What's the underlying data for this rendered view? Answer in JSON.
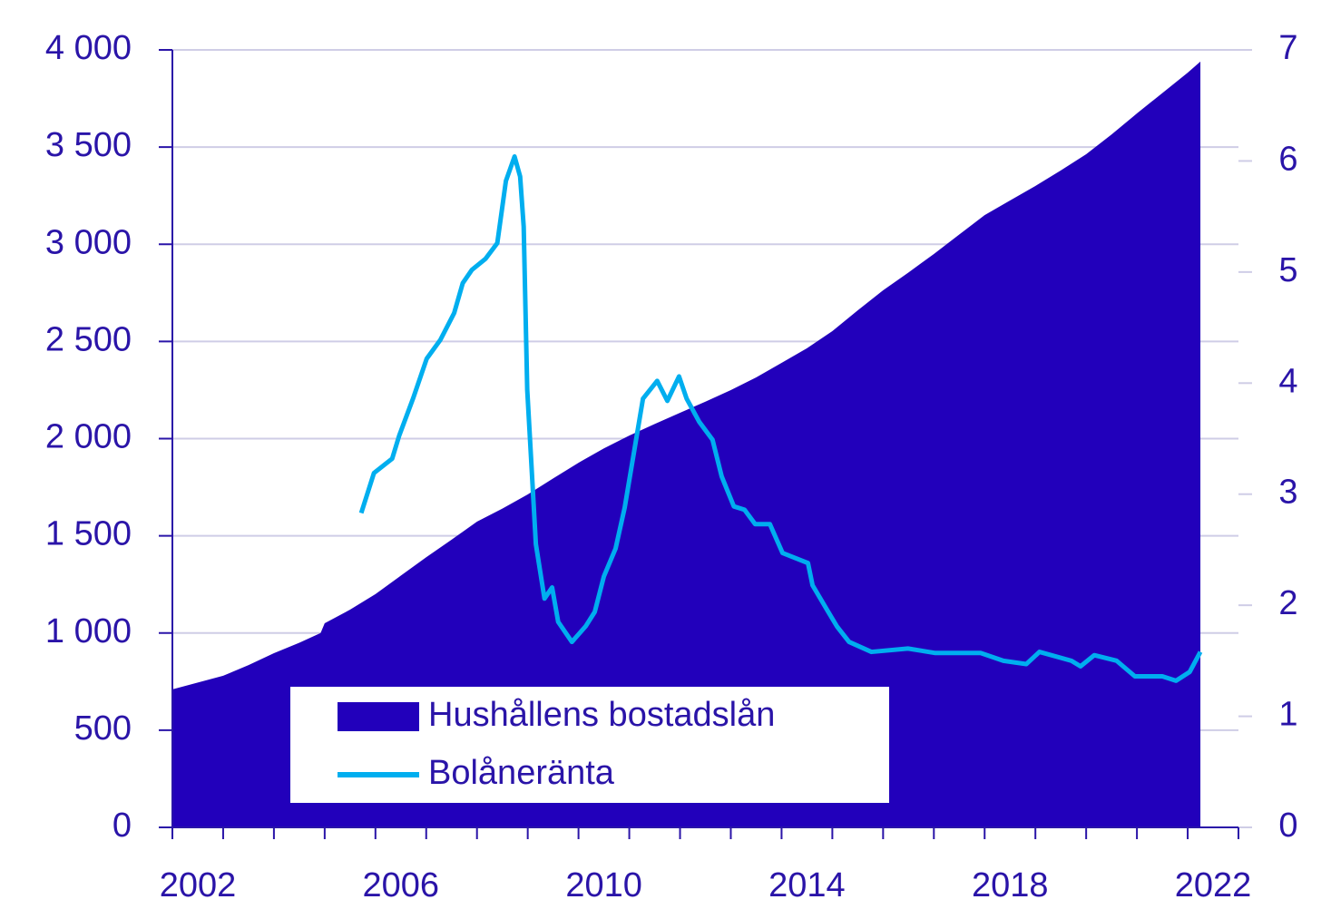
{
  "chart_data": {
    "type": "combo",
    "series": [
      {
        "name": "Hushållens bostadslån",
        "color": "#2200bb",
        "kind": "area",
        "axis": "y",
        "x": [
          2002,
          2002.5,
          2003,
          2003.5,
          2004,
          2004.5,
          2004.92,
          2005,
          2005.5,
          2006,
          2006.5,
          2007,
          2007.5,
          2008,
          2008.5,
          2009,
          2009.5,
          2010,
          2010.5,
          2011,
          2011.5,
          2012,
          2012.5,
          2013,
          2013.5,
          2014,
          2014.5,
          2015,
          2015.5,
          2016,
          2016.5,
          2017,
          2017.5,
          2018,
          2018.5,
          2019,
          2019.5,
          2020,
          2020.5,
          2021,
          2021.5,
          2022,
          2022.25
        ],
        "values": [
          710,
          745,
          780,
          835,
          896,
          950,
          1000,
          1050,
          1120,
          1200,
          1295,
          1390,
          1480,
          1573,
          1640,
          1713,
          1795,
          1876,
          1950,
          2016,
          2075,
          2133,
          2190,
          2250,
          2315,
          2390,
          2465,
          2553,
          2660,
          2763,
          2855,
          2950,
          3050,
          3150,
          3225,
          3300,
          3380,
          3463,
          3565,
          3673,
          3778,
          3883,
          3940
        ]
      },
      {
        "name": "Bolåneränta",
        "color": "#00aeef",
        "kind": "line",
        "axis": "y2",
        "x": [
          2005.72,
          2005.97,
          2006.33,
          2006.47,
          2006.74,
          2007.01,
          2007.28,
          2007.55,
          2007.72,
          2007.9,
          2008.17,
          2008.4,
          2008.57,
          2008.74,
          2008.85,
          2008.92,
          2008.99,
          2009.16,
          2009.33,
          2009.48,
          2009.6,
          2009.87,
          2010.14,
          2010.32,
          2010.5,
          2010.73,
          2010.91,
          2011.09,
          2011.27,
          2011.55,
          2011.75,
          2011.98,
          2012.13,
          2012.38,
          2012.64,
          2012.82,
          2013.06,
          2013.27,
          2013.48,
          2013.77,
          2014.02,
          2014.52,
          2014.61,
          2014.92,
          2015.09,
          2015.33,
          2015.77,
          2016.49,
          2017.03,
          2017.92,
          2018.37,
          2018.82,
          2019.08,
          2019.71,
          2019.89,
          2020.16,
          2020.6,
          2020.96,
          2021.5,
          2021.77,
          2022.04,
          2022.25
        ],
        "values": [
          2.83,
          3.19,
          3.32,
          3.53,
          3.86,
          4.22,
          4.39,
          4.63,
          4.9,
          5.02,
          5.12,
          5.26,
          5.82,
          6.04,
          5.86,
          5.41,
          3.94,
          2.55,
          2.06,
          2.16,
          1.85,
          1.67,
          1.81,
          1.94,
          2.26,
          2.51,
          2.88,
          3.37,
          3.86,
          4.02,
          3.84,
          4.06,
          3.86,
          3.65,
          3.49,
          3.16,
          2.89,
          2.86,
          2.73,
          2.73,
          2.47,
          2.38,
          2.18,
          1.94,
          1.81,
          1.67,
          1.58,
          1.61,
          1.57,
          1.57,
          1.5,
          1.47,
          1.58,
          1.5,
          1.45,
          1.55,
          1.5,
          1.36,
          1.36,
          1.32,
          1.4,
          1.58
        ]
      }
    ],
    "xlim": [
      2002,
      2023
    ],
    "xticks": [
      {
        "value": 2002.5,
        "label": "2002"
      },
      {
        "value": 2006.5,
        "label": "2006"
      },
      {
        "value": 2010.5,
        "label": "2010"
      },
      {
        "value": 2014.5,
        "label": "2014"
      },
      {
        "value": 2018.5,
        "label": "2018"
      },
      {
        "value": 2022.5,
        "label": "2022"
      }
    ],
    "minor_xticks": [
      2002,
      2003,
      2004,
      2005,
      2006,
      2007,
      2008,
      2009,
      2010,
      2011,
      2012,
      2013,
      2014,
      2015,
      2016,
      2017,
      2018,
      2019,
      2020,
      2021,
      2022,
      2023
    ],
    "ylim": [
      0,
      4000
    ],
    "yticks": [
      0,
      500,
      {
        "value": 1000,
        "label": "1 000"
      },
      {
        "value": 1500,
        "label": "1 500"
      },
      {
        "value": 2000,
        "label": "2 000"
      },
      {
        "value": 2500,
        "label": "2 500"
      },
      {
        "value": 3000,
        "label": "3 000"
      },
      {
        "value": 3500,
        "label": "3 500"
      },
      {
        "value": 4000,
        "label": "4 000"
      }
    ],
    "y2lim": [
      0,
      7
    ],
    "y2ticks": [
      0,
      1,
      2,
      3,
      4,
      5,
      6,
      7
    ],
    "grid": true,
    "legend": "bottom-left"
  }
}
